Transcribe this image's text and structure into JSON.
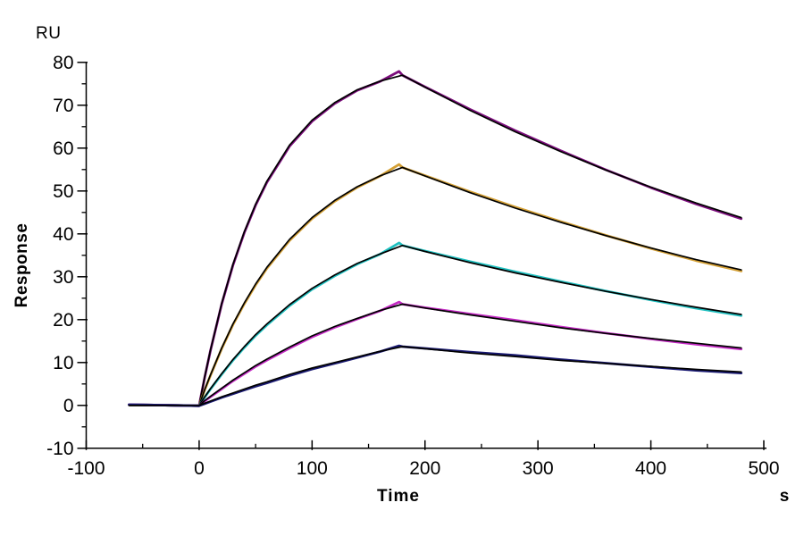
{
  "figure": {
    "title": "",
    "background": "#ffffff",
    "axis_color": "#000000",
    "fit_color": "#000000"
  },
  "chart_data": {
    "type": "line",
    "description": "SPR sensorgram: five analyte concentration traces (raw colored lines) with overlaid black kinetic fit curves. Association phase 0-180 s, dissociation phase 180-480 s, baseline from about -62 s.",
    "title": "",
    "xlabel": "Time",
    "x_unit": "s",
    "ylabel": "Response",
    "y_unit": "RU",
    "xlim": [
      -100,
      500
    ],
    "ylim": [
      -10,
      80
    ],
    "x_major_ticks": [
      -100,
      0,
      100,
      200,
      300,
      400,
      500
    ],
    "x_minor_ticks": [
      -50,
      50,
      150,
      250,
      350,
      450
    ],
    "y_major_ticks": [
      -10,
      0,
      10,
      20,
      30,
      40,
      50,
      60,
      70,
      80
    ],
    "y_minor_ticks": [
      -5,
      5,
      15,
      25,
      35,
      45,
      55,
      65,
      75
    ],
    "grid": false,
    "legend": "none",
    "phases": {
      "baseline_start_s": -62,
      "association_start_s": 0,
      "association_end_s": 180,
      "dissociation_end_s": 480
    },
    "series": [
      {
        "name": "trace-1-purple",
        "color": "#7d0e7d",
        "peak_ru": 77.0,
        "end_ru": 43.8,
        "raw_peak": [
          177,
          77.9
        ],
        "points": [
          [
            -62,
            0
          ],
          [
            -40,
            0
          ],
          [
            -20,
            0
          ],
          [
            -1,
            0
          ],
          [
            0,
            0
          ],
          [
            5,
            6.7
          ],
          [
            10,
            12.9
          ],
          [
            20,
            23.8
          ],
          [
            30,
            32.9
          ],
          [
            40,
            40.5
          ],
          [
            50,
            46.9
          ],
          [
            60,
            52.3
          ],
          [
            80,
            60.7
          ],
          [
            100,
            66.5
          ],
          [
            120,
            70.6
          ],
          [
            140,
            73.6
          ],
          [
            160,
            75.6
          ],
          [
            180,
            77.0
          ],
          [
            200,
            74.2
          ],
          [
            240,
            68.8
          ],
          [
            280,
            63.8
          ],
          [
            320,
            59.2
          ],
          [
            360,
            54.9
          ],
          [
            400,
            50.9
          ],
          [
            440,
            47.2
          ],
          [
            480,
            43.8
          ]
        ]
      },
      {
        "name": "trace-2-gold",
        "color": "#d4a035",
        "peak_ru": 55.5,
        "end_ru": 31.6,
        "raw_peak": [
          177,
          56.2
        ],
        "points": [
          [
            -62,
            0
          ],
          [
            -40,
            0
          ],
          [
            -20,
            0
          ],
          [
            -1,
            0
          ],
          [
            0,
            0
          ],
          [
            5,
            3.7
          ],
          [
            10,
            7.1
          ],
          [
            20,
            13.4
          ],
          [
            30,
            19.0
          ],
          [
            40,
            23.9
          ],
          [
            50,
            28.3
          ],
          [
            60,
            32.2
          ],
          [
            80,
            38.7
          ],
          [
            100,
            43.8
          ],
          [
            120,
            47.8
          ],
          [
            140,
            51.0
          ],
          [
            160,
            53.5
          ],
          [
            180,
            55.5
          ],
          [
            200,
            53.5
          ],
          [
            240,
            49.6
          ],
          [
            280,
            46.0
          ],
          [
            320,
            42.7
          ],
          [
            360,
            39.6
          ],
          [
            400,
            36.7
          ],
          [
            440,
            34.0
          ],
          [
            480,
            31.6
          ]
        ]
      },
      {
        "name": "trace-3-cyan",
        "color": "#1fc0c0",
        "peak_ru": 37.3,
        "end_ru": 21.2,
        "raw_peak": [
          177,
          37.9
        ],
        "points": [
          [
            -62,
            0
          ],
          [
            -40,
            0
          ],
          [
            -20,
            0
          ],
          [
            -1,
            0
          ],
          [
            0,
            0
          ],
          [
            5,
            2.0
          ],
          [
            10,
            3.9
          ],
          [
            20,
            7.4
          ],
          [
            30,
            10.7
          ],
          [
            40,
            13.7
          ],
          [
            50,
            16.5
          ],
          [
            60,
            19.0
          ],
          [
            80,
            23.5
          ],
          [
            100,
            27.3
          ],
          [
            120,
            30.4
          ],
          [
            140,
            33.1
          ],
          [
            160,
            35.3
          ],
          [
            180,
            37.3
          ],
          [
            200,
            35.9
          ],
          [
            240,
            33.3
          ],
          [
            280,
            30.9
          ],
          [
            320,
            28.7
          ],
          [
            360,
            26.6
          ],
          [
            400,
            24.7
          ],
          [
            440,
            22.9
          ],
          [
            480,
            21.2
          ]
        ]
      },
      {
        "name": "trace-4-magenta",
        "color": "#c42ac4",
        "peak_ru": 23.6,
        "end_ru": 13.4,
        "raw_peak": [
          177,
          24.1
        ],
        "points": [
          [
            -62,
            0
          ],
          [
            -40,
            0
          ],
          [
            -20,
            0
          ],
          [
            -1,
            0
          ],
          [
            0,
            0
          ],
          [
            5,
            1.1
          ],
          [
            10,
            2.1
          ],
          [
            20,
            4.0
          ],
          [
            30,
            5.9
          ],
          [
            40,
            7.6
          ],
          [
            50,
            9.3
          ],
          [
            60,
            10.8
          ],
          [
            80,
            13.6
          ],
          [
            100,
            16.2
          ],
          [
            120,
            18.4
          ],
          [
            140,
            20.3
          ],
          [
            160,
            22.1
          ],
          [
            180,
            23.6
          ],
          [
            200,
            22.7
          ],
          [
            240,
            21.1
          ],
          [
            280,
            19.6
          ],
          [
            320,
            18.1
          ],
          [
            360,
            16.8
          ],
          [
            400,
            15.6
          ],
          [
            440,
            14.5
          ],
          [
            480,
            13.4
          ]
        ]
      },
      {
        "name": "trace-5-navy",
        "color": "#1a1a72",
        "peak_ru": 13.7,
        "end_ru": 7.8,
        "raw_peak": [
          177,
          13.9
        ],
        "points": [
          [
            -62,
            0
          ],
          [
            -40,
            0
          ],
          [
            -20,
            0
          ],
          [
            -1,
            0
          ],
          [
            0,
            0
          ],
          [
            5,
            0.5
          ],
          [
            10,
            1.0
          ],
          [
            20,
            2.0
          ],
          [
            30,
            2.9
          ],
          [
            40,
            3.8
          ],
          [
            50,
            4.7
          ],
          [
            60,
            5.5
          ],
          [
            80,
            7.2
          ],
          [
            100,
            8.7
          ],
          [
            120,
            10.0
          ],
          [
            140,
            11.3
          ],
          [
            160,
            12.6
          ],
          [
            180,
            13.7
          ],
          [
            200,
            13.2
          ],
          [
            240,
            12.2
          ],
          [
            280,
            11.4
          ],
          [
            320,
            10.5
          ],
          [
            360,
            9.8
          ],
          [
            400,
            9.1
          ],
          [
            440,
            8.4
          ],
          [
            480,
            7.8
          ]
        ]
      }
    ]
  }
}
